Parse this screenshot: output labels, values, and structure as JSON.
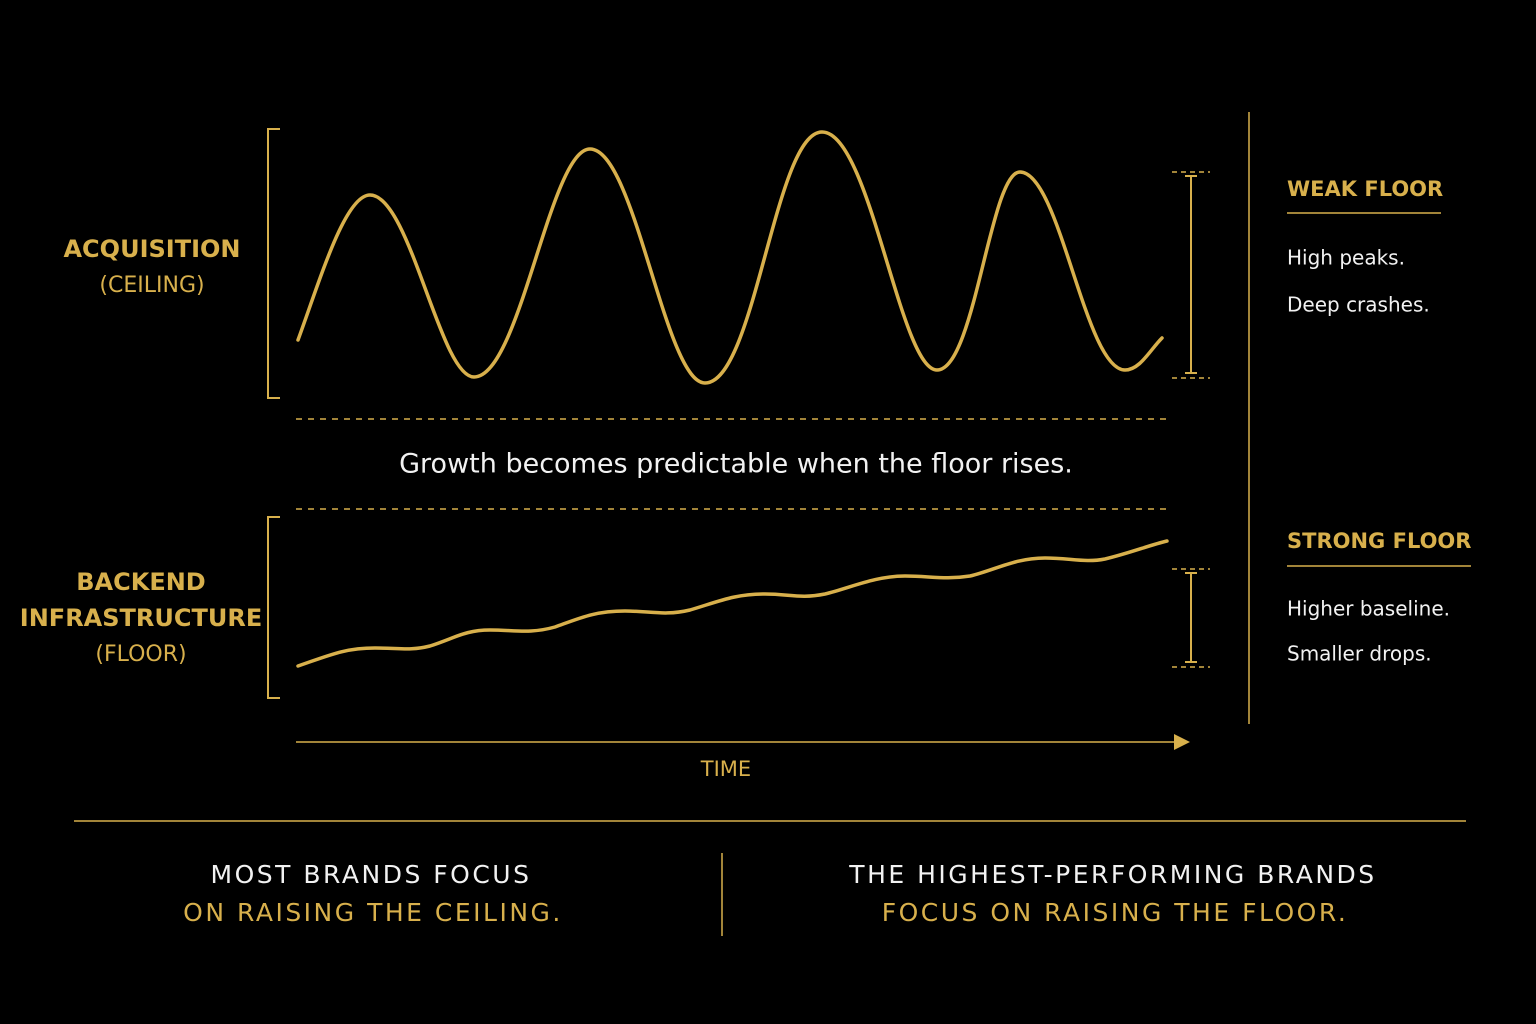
{
  "top_panel": {
    "label_lines": [
      "ACQUISITION",
      "(CEILING)"
    ]
  },
  "bottom_panel": {
    "label_lines": [
      "BACKEND",
      "INFRASTRUCTURE",
      "(FLOOR)"
    ]
  },
  "middle_text": "Growth becomes predictable when the floor rises.",
  "x_axis_label": "TIME",
  "side": [
    {
      "heading": "WEAK FLOOR",
      "lines": [
        "High peaks.",
        "Deep crashes."
      ]
    },
    {
      "heading": "STRONG FLOOR",
      "lines": [
        "Higher baseline.",
        "Smaller drops."
      ]
    }
  ],
  "footer": [
    {
      "line1": "MOST BRANDS FOCUS",
      "line2": "ON RAISING THE CEILING."
    },
    {
      "line1": "THE HIGHEST-PERFORMING BRANDS",
      "line2": "FOCUS ON RAISING THE FLOOR."
    }
  ]
}
